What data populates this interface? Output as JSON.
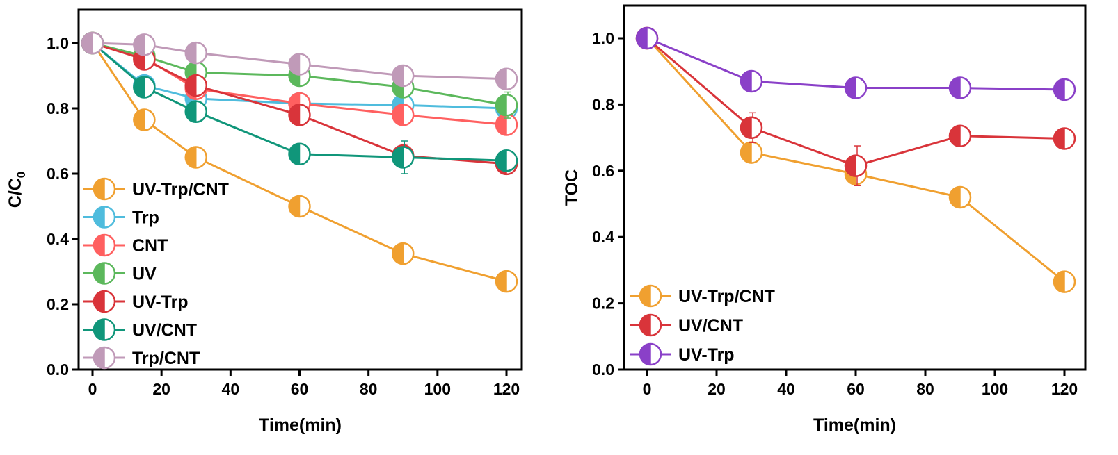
{
  "chart_data": [
    {
      "id": "left",
      "type": "line",
      "title": "",
      "xlabel": "Time(min)",
      "ylabel": "C/C0",
      "ylabel_main": "C/C",
      "ylabel_sub": "0",
      "xlim": [
        -3,
        124
      ],
      "ylim": [
        0.0,
        1.1
      ],
      "xticks": [
        0,
        20,
        40,
        60,
        80,
        100,
        120
      ],
      "xtick_labels": [
        "0",
        "20",
        "40",
        "60",
        "80",
        "100",
        "120"
      ],
      "yticks": [
        0.0,
        0.2,
        0.4,
        0.6,
        0.8,
        1.0
      ],
      "ytick_labels": [
        "0.0",
        "0.2",
        "0.4",
        "0.6",
        "0.8",
        "1.0"
      ],
      "grid": false,
      "legend_position": "bottom-left",
      "marker": "half-filled circle (left half filled)",
      "x": [
        0,
        15,
        30,
        60,
        90,
        120
      ],
      "series": [
        {
          "name": "UV-Trp/CNT",
          "color": "#F0A030",
          "values": [
            1.0,
            0.765,
            0.65,
            0.5,
            0.355,
            0.27
          ],
          "errors": [
            0,
            0.02,
            0.02,
            0.01,
            0.01,
            0.015
          ]
        },
        {
          "name": "Trp",
          "color": "#4FBCDD",
          "values": [
            1.0,
            0.87,
            0.83,
            0.815,
            0.81,
            0.8
          ],
          "errors": [
            0,
            0.01,
            0.01,
            0.01,
            0.01,
            0.01
          ]
        },
        {
          "name": "CNT",
          "color": "#FF6060",
          "values": [
            1.0,
            0.955,
            0.86,
            0.815,
            0.78,
            0.75
          ],
          "errors": [
            0,
            0.02,
            0.01,
            0.01,
            0.01,
            0.015
          ]
        },
        {
          "name": "UV",
          "color": "#5CB85C",
          "values": [
            1.0,
            0.96,
            0.91,
            0.9,
            0.865,
            0.81
          ],
          "errors": [
            0,
            0.02,
            0.015,
            0.01,
            0.015,
            0.04
          ]
        },
        {
          "name": "UV-Trp",
          "color": "#D9343A",
          "values": [
            1.0,
            0.95,
            0.87,
            0.78,
            0.655,
            0.63
          ],
          "errors": [
            0,
            0.02,
            0.02,
            0.015,
            0.035,
            0.01
          ]
        },
        {
          "name": "UV/CNT",
          "color": "#10967A",
          "values": [
            1.0,
            0.865,
            0.79,
            0.66,
            0.65,
            0.64
          ],
          "errors": [
            0,
            0.015,
            0.01,
            0.01,
            0.05,
            0.02
          ]
        },
        {
          "name": "Trp/CNT",
          "color": "#C09AB8",
          "values": [
            1.0,
            0.995,
            0.97,
            0.935,
            0.9,
            0.89
          ],
          "errors": [
            0,
            0.015,
            0.02,
            0.01,
            0.01,
            0.02
          ]
        }
      ]
    },
    {
      "id": "right",
      "type": "line",
      "title": "",
      "xlabel": "Time(min)",
      "ylabel": "TOC",
      "xlim": [
        -3,
        124
      ],
      "ylim": [
        0.0,
        1.1
      ],
      "xticks": [
        0,
        20,
        40,
        60,
        80,
        100,
        120
      ],
      "xtick_labels": [
        "0",
        "20",
        "40",
        "60",
        "80",
        "100",
        "120"
      ],
      "yticks": [
        0.0,
        0.2,
        0.4,
        0.6,
        0.8,
        1.0
      ],
      "ytick_labels": [
        "0.0",
        "0.2",
        "0.4",
        "0.6",
        "0.8",
        "1.0"
      ],
      "grid": false,
      "legend_position": "bottom-left",
      "marker": "half-filled circle (left half filled)",
      "x": [
        0,
        30,
        60,
        90,
        120
      ],
      "series": [
        {
          "name": "UV-Trp/CNT",
          "color": "#F0A030",
          "values": [
            1.0,
            0.655,
            0.59,
            0.52,
            0.265
          ],
          "errors": [
            0,
            0.02,
            0.02,
            0.01,
            0.015
          ]
        },
        {
          "name": "UV/CNT",
          "color": "#D9343A",
          "values": [
            1.0,
            0.73,
            0.615,
            0.705,
            0.697
          ],
          "errors": [
            0,
            0.045,
            0.06,
            0.015,
            0.015
          ]
        },
        {
          "name": "UV-Trp",
          "color": "#8A40C8",
          "values": [
            1.0,
            0.87,
            0.85,
            0.85,
            0.845
          ],
          "errors": [
            0,
            0.01,
            0.01,
            0.01,
            0.01
          ]
        }
      ]
    }
  ]
}
